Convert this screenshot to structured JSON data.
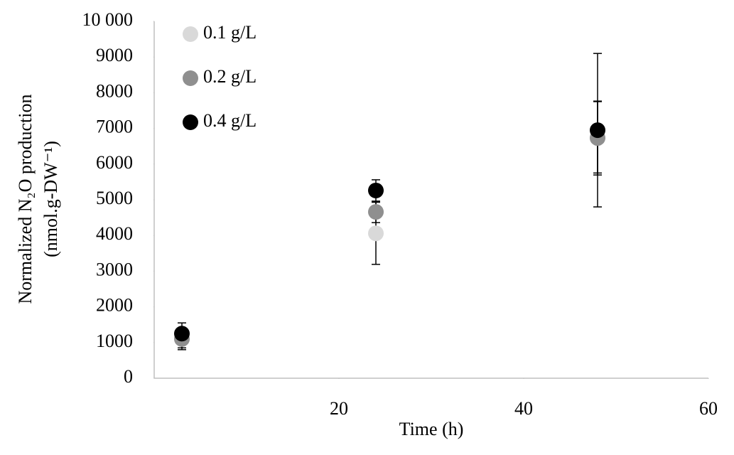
{
  "chart_data": {
    "type": "scatter",
    "x_label": "Time (h)",
    "y_label": [
      "Normalized N₂O production",
      "(nmol.g-DW⁻¹)"
    ],
    "x": [
      3,
      24,
      48
    ],
    "series": [
      {
        "name": "0.1 g/L",
        "color": "#d9d9d9",
        "values": [
          1100,
          4060,
          6750
        ],
        "errors": [
          300,
          870,
          1000
        ]
      },
      {
        "name": "0.2 g/L",
        "color": "#8f8f8f",
        "values": [
          1100,
          4660,
          6730
        ],
        "errors": [
          250,
          300,
          1035
        ]
      },
      {
        "name": "0.4 g/L",
        "color": "#000000",
        "values": [
          1250,
          5260,
          6950
        ],
        "errors": [
          300,
          300,
          2150
        ]
      }
    ],
    "xlim": [
      0,
      60
    ],
    "xticks": [
      20,
      40,
      60
    ],
    "ylim": [
      0,
      10000
    ],
    "yticks": [
      0,
      1000,
      2000,
      3000,
      4000,
      5000,
      6000,
      7000,
      8000,
      9000,
      {
        "value": 10000,
        "label": "10 000"
      }
    ],
    "legend": "upper left",
    "grid": false
  }
}
